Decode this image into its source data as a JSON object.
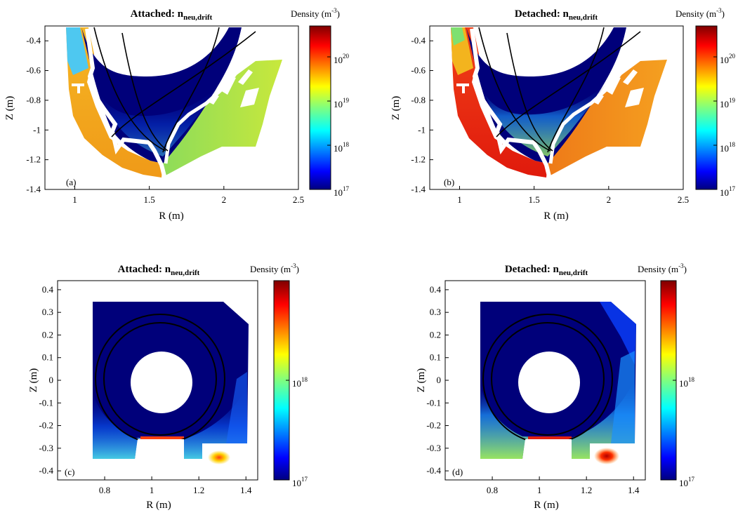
{
  "colors": {
    "void": "#00007a",
    "divertor_core": "#00007a",
    "attached_outer_left": "#f2a91e",
    "attached_outer_right": "#9fe04a",
    "detached_outer_left": "#e82410",
    "detached_outer_right": "#f08c1c",
    "wall": "#ffffff",
    "separatrix": "#000000"
  },
  "chart_data": [
    {
      "id": "a",
      "type": "heatmap",
      "title_main": "Attached: n",
      "title_sub": "neu,drift",
      "panel_label": "(a)",
      "xlabel": "R (m)",
      "ylabel": "Z (m)",
      "xlim": [
        0.8,
        2.5
      ],
      "ylim": [
        -1.4,
        -0.3
      ],
      "xticks": [
        {
          "v": 1,
          "label": "1"
        },
        {
          "v": 1.5,
          "label": "1.5"
        },
        {
          "v": 2,
          "label": "2"
        },
        {
          "v": 2.5,
          "label": "2.5"
        }
      ],
      "yticks": [
        {
          "v": -0.4,
          "label": "-0.4"
        },
        {
          "v": -0.6,
          "label": "-0.6"
        },
        {
          "v": -0.8,
          "label": "-0.8"
        },
        {
          "v": -1.0,
          "label": "-1"
        },
        {
          "v": -1.2,
          "label": "-1.2"
        },
        {
          "v": -1.4,
          "label": "-1.4"
        }
      ],
      "colorbar": {
        "label_main": "Density (m",
        "label_exp": "-3",
        "label_close": ")",
        "scale": "log",
        "range": [
          1e+17,
          5e+20
        ],
        "ticks": [
          {
            "v": 1e+17,
            "base": "10",
            "exp": "17"
          },
          {
            "v": 1e+18,
            "base": "10",
            "exp": "18"
          },
          {
            "v": 1e+19,
            "base": "10",
            "exp": "19"
          },
          {
            "v": 1e+20,
            "base": "10",
            "exp": "20"
          }
        ]
      },
      "regime": "attached"
    },
    {
      "id": "b",
      "type": "heatmap",
      "title_main": "Detached: n",
      "title_sub": "neu,drift",
      "panel_label": "(b)",
      "xlabel": "R (m)",
      "ylabel": "Z (m)",
      "xlim": [
        0.8,
        2.5
      ],
      "ylim": [
        -1.4,
        -0.3
      ],
      "xticks": [
        {
          "v": 1,
          "label": "1"
        },
        {
          "v": 1.5,
          "label": "1.5"
        },
        {
          "v": 2,
          "label": "2"
        },
        {
          "v": 2.5,
          "label": "2.5"
        }
      ],
      "yticks": [
        {
          "v": -0.4,
          "label": "-0.4"
        },
        {
          "v": -0.6,
          "label": "-0.6"
        },
        {
          "v": -0.8,
          "label": "-0.8"
        },
        {
          "v": -1.0,
          "label": "-1"
        },
        {
          "v": -1.2,
          "label": "-1.2"
        },
        {
          "v": -1.4,
          "label": "-1.4"
        }
      ],
      "colorbar": {
        "label_main": "Density (m",
        "label_exp": "-3",
        "label_close": ")",
        "scale": "log",
        "range": [
          1e+17,
          5e+20
        ],
        "ticks": [
          {
            "v": 1e+17,
            "base": "10",
            "exp": "17"
          },
          {
            "v": 1e+18,
            "base": "10",
            "exp": "18"
          },
          {
            "v": 1e+19,
            "base": "10",
            "exp": "19"
          },
          {
            "v": 1e+20,
            "base": "10",
            "exp": "20"
          }
        ]
      },
      "regime": "detached"
    },
    {
      "id": "c",
      "type": "heatmap",
      "title_main": "Attached: n",
      "title_sub": "neu,drift",
      "panel_label": "(c)",
      "xlabel": "R (m)",
      "ylabel": "Z (m)",
      "xlim": [
        0.6,
        1.45
      ],
      "ylim": [
        -0.44,
        0.44
      ],
      "xticks": [
        {
          "v": 0.8,
          "label": "0.8"
        },
        {
          "v": 1.0,
          "label": "1"
        },
        {
          "v": 1.2,
          "label": "1.2"
        },
        {
          "v": 1.4,
          "label": "1.4"
        }
      ],
      "yticks": [
        {
          "v": 0.4,
          "label": "0.4"
        },
        {
          "v": 0.3,
          "label": "0.3"
        },
        {
          "v": 0.2,
          "label": "0.2"
        },
        {
          "v": 0.1,
          "label": "0.1"
        },
        {
          "v": 0.0,
          "label": "0"
        },
        {
          "v": -0.1,
          "label": "-0.1"
        },
        {
          "v": -0.2,
          "label": "-0.2"
        },
        {
          "v": -0.3,
          "label": "-0.3"
        },
        {
          "v": -0.4,
          "label": "-0.4"
        }
      ],
      "colorbar": {
        "label_main": "Density (m",
        "label_exp": "-3",
        "label_close": ")",
        "scale": "log",
        "range": [
          1e+17,
          1e+19
        ],
        "ticks": [
          {
            "v": 1e+17,
            "base": "10",
            "exp": "17"
          },
          {
            "v": 1e+18,
            "base": "10",
            "exp": "18"
          }
        ]
      },
      "regime": "attached"
    },
    {
      "id": "d",
      "type": "heatmap",
      "title_main": "Detached: n",
      "title_sub": "neu,drift",
      "panel_label": "(d)",
      "xlabel": "R (m)",
      "ylabel": "Z (m)",
      "xlim": [
        0.6,
        1.45
      ],
      "ylim": [
        -0.44,
        0.44
      ],
      "xticks": [
        {
          "v": 0.8,
          "label": "0.8"
        },
        {
          "v": 1.0,
          "label": "1"
        },
        {
          "v": 1.2,
          "label": "1.2"
        },
        {
          "v": 1.4,
          "label": "1.4"
        }
      ],
      "yticks": [
        {
          "v": 0.4,
          "label": "0.4"
        },
        {
          "v": 0.3,
          "label": "0.3"
        },
        {
          "v": 0.2,
          "label": "0.2"
        },
        {
          "v": 0.1,
          "label": "0.1"
        },
        {
          "v": 0.0,
          "label": "0"
        },
        {
          "v": -0.1,
          "label": "-0.1"
        },
        {
          "v": -0.2,
          "label": "-0.2"
        },
        {
          "v": -0.3,
          "label": "-0.3"
        },
        {
          "v": -0.4,
          "label": "-0.4"
        }
      ],
      "colorbar": {
        "label_main": "Density (m",
        "label_exp": "-3",
        "label_close": ")",
        "scale": "log",
        "range": [
          1e+17,
          1e+19
        ],
        "ticks": [
          {
            "v": 1e+17,
            "base": "10",
            "exp": "17"
          },
          {
            "v": 1e+18,
            "base": "10",
            "exp": "18"
          }
        ]
      },
      "regime": "detached"
    }
  ]
}
